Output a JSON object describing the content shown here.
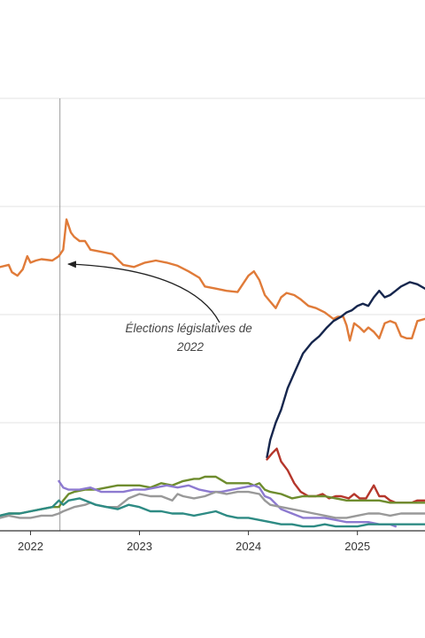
{
  "chart_data": {
    "type": "line",
    "title": "",
    "xlabel": "",
    "ylabel": "",
    "x_tick_labels": [
      "2022",
      "2023",
      "2024",
      "2025"
    ],
    "xlim": [
      2021.72,
      2025.62
    ],
    "ylim": [
      0,
      100
    ],
    "y_gridlines": [
      25,
      50,
      75
    ],
    "grid": true,
    "legend": "none",
    "annotation": {
      "lines": [
        "Élections législatives de",
        "2022"
      ],
      "event_x": 2022.27
    },
    "series": [
      {
        "color": "#e07b39",
        "points": [
          [
            2021.72,
            61
          ],
          [
            2021.8,
            61.5
          ],
          [
            2021.83,
            59.8
          ],
          [
            2021.88,
            59
          ],
          [
            2021.93,
            60.5
          ],
          [
            2021.97,
            63.5
          ],
          [
            2022.0,
            62
          ],
          [
            2022.05,
            62.5
          ],
          [
            2022.1,
            62.8
          ],
          [
            2022.2,
            62.5
          ],
          [
            2022.26,
            63.5
          ],
          [
            2022.3,
            65
          ],
          [
            2022.33,
            72
          ],
          [
            2022.37,
            69
          ],
          [
            2022.4,
            68
          ],
          [
            2022.45,
            67
          ],
          [
            2022.5,
            67
          ],
          [
            2022.55,
            65
          ],
          [
            2022.65,
            64.5
          ],
          [
            2022.75,
            64
          ],
          [
            2022.85,
            61.5
          ],
          [
            2022.95,
            61
          ],
          [
            2023.05,
            62
          ],
          [
            2023.15,
            62.5
          ],
          [
            2023.25,
            62
          ],
          [
            2023.35,
            61.3
          ],
          [
            2023.45,
            60
          ],
          [
            2023.55,
            58.5
          ],
          [
            2023.6,
            56.5
          ],
          [
            2023.7,
            56
          ],
          [
            2023.8,
            55.5
          ],
          [
            2023.9,
            55.2
          ],
          [
            2024.0,
            59
          ],
          [
            2024.05,
            60
          ],
          [
            2024.1,
            58
          ],
          [
            2024.15,
            54.5
          ],
          [
            2024.2,
            53
          ],
          [
            2024.25,
            51.5
          ],
          [
            2024.3,
            54
          ],
          [
            2024.35,
            55
          ],
          [
            2024.42,
            54.5
          ],
          [
            2024.48,
            53.5
          ],
          [
            2024.55,
            52
          ],
          [
            2024.62,
            51.5
          ],
          [
            2024.7,
            50.5
          ],
          [
            2024.78,
            49
          ],
          [
            2024.82,
            49.5
          ],
          [
            2024.87,
            49.5
          ],
          [
            2024.9,
            47.5
          ],
          [
            2024.93,
            44
          ],
          [
            2024.97,
            48
          ],
          [
            2025.02,
            47
          ],
          [
            2025.06,
            46
          ],
          [
            2025.1,
            47
          ],
          [
            2025.15,
            46
          ],
          [
            2025.2,
            44.5
          ],
          [
            2025.25,
            48
          ],
          [
            2025.3,
            48.5
          ],
          [
            2025.35,
            48
          ],
          [
            2025.4,
            45
          ],
          [
            2025.45,
            44.5
          ],
          [
            2025.5,
            44.5
          ],
          [
            2025.55,
            48.5
          ],
          [
            2025.62,
            49
          ]
        ]
      },
      {
        "color": "#16264d",
        "points": [
          [
            2024.17,
            17
          ],
          [
            2024.2,
            21
          ],
          [
            2024.25,
            25
          ],
          [
            2024.3,
            28
          ],
          [
            2024.36,
            33
          ],
          [
            2024.43,
            37
          ],
          [
            2024.5,
            41
          ],
          [
            2024.58,
            43.5
          ],
          [
            2024.65,
            45
          ],
          [
            2024.72,
            47
          ],
          [
            2024.78,
            48.5
          ],
          [
            2024.85,
            49.5
          ],
          [
            2024.9,
            50.5
          ],
          [
            2024.95,
            51
          ],
          [
            2025.0,
            52
          ],
          [
            2025.05,
            52.5
          ],
          [
            2025.1,
            52
          ],
          [
            2025.15,
            54
          ],
          [
            2025.2,
            55.5
          ],
          [
            2025.25,
            54
          ],
          [
            2025.3,
            54.5
          ],
          [
            2025.35,
            55.5
          ],
          [
            2025.4,
            56.5
          ],
          [
            2025.48,
            57.5
          ],
          [
            2025.55,
            57
          ],
          [
            2025.62,
            56
          ]
        ]
      },
      {
        "color": "#b5362b",
        "points": [
          [
            2024.17,
            16.5
          ],
          [
            2024.22,
            18
          ],
          [
            2024.26,
            19
          ],
          [
            2024.3,
            16
          ],
          [
            2024.36,
            14
          ],
          [
            2024.42,
            11
          ],
          [
            2024.48,
            9
          ],
          [
            2024.55,
            8
          ],
          [
            2024.62,
            8
          ],
          [
            2024.68,
            8.5
          ],
          [
            2024.74,
            7.5
          ],
          [
            2024.8,
            8
          ],
          [
            2024.85,
            8
          ],
          [
            2024.92,
            7.5
          ],
          [
            2024.97,
            8.5
          ],
          [
            2025.02,
            7.5
          ],
          [
            2025.08,
            7.5
          ],
          [
            2025.15,
            10.5
          ],
          [
            2025.2,
            8
          ],
          [
            2025.25,
            8
          ],
          [
            2025.3,
            7
          ],
          [
            2025.35,
            6.5
          ],
          [
            2025.42,
            6.5
          ],
          [
            2025.5,
            6.5
          ],
          [
            2025.55,
            7
          ],
          [
            2025.62,
            7
          ]
        ]
      },
      {
        "color": "#6e8c2e",
        "points": [
          [
            2021.72,
            3.5
          ],
          [
            2021.8,
            4
          ],
          [
            2021.9,
            4
          ],
          [
            2022.0,
            4.5
          ],
          [
            2022.1,
            5
          ],
          [
            2022.2,
            5.5
          ],
          [
            2022.26,
            5.5
          ],
          [
            2022.3,
            7
          ],
          [
            2022.35,
            8.5
          ],
          [
            2022.4,
            9
          ],
          [
            2022.5,
            9.5
          ],
          [
            2022.6,
            9.5
          ],
          [
            2022.7,
            10
          ],
          [
            2022.8,
            10.5
          ],
          [
            2022.9,
            10.5
          ],
          [
            2023.0,
            10.5
          ],
          [
            2023.1,
            10
          ],
          [
            2023.2,
            11
          ],
          [
            2023.3,
            10.5
          ],
          [
            2023.4,
            11.5
          ],
          [
            2023.5,
            12
          ],
          [
            2023.55,
            12
          ],
          [
            2023.6,
            12.5
          ],
          [
            2023.7,
            12.5
          ],
          [
            2023.8,
            11
          ],
          [
            2023.9,
            11
          ],
          [
            2024.0,
            11
          ],
          [
            2024.05,
            10.5
          ],
          [
            2024.1,
            11
          ],
          [
            2024.15,
            9.5
          ],
          [
            2024.2,
            9
          ],
          [
            2024.3,
            8.5
          ],
          [
            2024.4,
            7.5
          ],
          [
            2024.5,
            8
          ],
          [
            2024.6,
            8
          ],
          [
            2024.7,
            8
          ],
          [
            2024.8,
            7.5
          ],
          [
            2024.9,
            7
          ],
          [
            2025.0,
            7
          ],
          [
            2025.1,
            7
          ],
          [
            2025.2,
            7
          ],
          [
            2025.3,
            6.5
          ],
          [
            2025.4,
            6.5
          ],
          [
            2025.5,
            6.5
          ],
          [
            2025.62,
            6.5
          ]
        ]
      },
      {
        "color": "#8d7ad0",
        "points": [
          [
            2022.26,
            11.5
          ],
          [
            2022.3,
            10
          ],
          [
            2022.35,
            9.5
          ],
          [
            2022.45,
            9.5
          ],
          [
            2022.55,
            10
          ],
          [
            2022.65,
            9
          ],
          [
            2022.75,
            9
          ],
          [
            2022.85,
            9
          ],
          [
            2022.95,
            9.5
          ],
          [
            2023.05,
            9.5
          ],
          [
            2023.15,
            10
          ],
          [
            2023.25,
            10.5
          ],
          [
            2023.35,
            10
          ],
          [
            2023.45,
            10.5
          ],
          [
            2023.55,
            9.5
          ],
          [
            2023.65,
            9
          ],
          [
            2023.75,
            9
          ],
          [
            2023.85,
            9.5
          ],
          [
            2023.95,
            10
          ],
          [
            2024.05,
            10.5
          ],
          [
            2024.1,
            10
          ],
          [
            2024.15,
            8
          ],
          [
            2024.2,
            7.5
          ],
          [
            2024.3,
            5
          ],
          [
            2024.4,
            4
          ],
          [
            2024.5,
            3
          ],
          [
            2024.6,
            3
          ],
          [
            2024.7,
            3
          ],
          [
            2024.8,
            2.5
          ],
          [
            2024.9,
            2
          ],
          [
            2025.0,
            2
          ],
          [
            2025.1,
            2
          ],
          [
            2025.2,
            1.5
          ],
          [
            2025.3,
            1.5
          ],
          [
            2025.35,
            1
          ]
        ]
      },
      {
        "color": "#999999",
        "points": [
          [
            2021.72,
            3
          ],
          [
            2021.8,
            3.5
          ],
          [
            2021.9,
            3
          ],
          [
            2022.0,
            3
          ],
          [
            2022.1,
            3.5
          ],
          [
            2022.2,
            3.5
          ],
          [
            2022.26,
            4
          ],
          [
            2022.3,
            4.5
          ],
          [
            2022.4,
            5.5
          ],
          [
            2022.5,
            6
          ],
          [
            2022.55,
            6.5
          ],
          [
            2022.6,
            6
          ],
          [
            2022.7,
            5.5
          ],
          [
            2022.8,
            5.5
          ],
          [
            2022.9,
            7.5
          ],
          [
            2023.0,
            8.5
          ],
          [
            2023.1,
            8
          ],
          [
            2023.2,
            8
          ],
          [
            2023.3,
            7
          ],
          [
            2023.35,
            8.5
          ],
          [
            2023.4,
            8
          ],
          [
            2023.5,
            7.5
          ],
          [
            2023.6,
            8
          ],
          [
            2023.7,
            9
          ],
          [
            2023.8,
            8.5
          ],
          [
            2023.9,
            9
          ],
          [
            2024.0,
            9
          ],
          [
            2024.1,
            8.5
          ],
          [
            2024.15,
            7
          ],
          [
            2024.2,
            6
          ],
          [
            2024.3,
            5.5
          ],
          [
            2024.4,
            5
          ],
          [
            2024.5,
            4.5
          ],
          [
            2024.6,
            4
          ],
          [
            2024.7,
            3.5
          ],
          [
            2024.8,
            3
          ],
          [
            2024.9,
            3
          ],
          [
            2025.0,
            3.5
          ],
          [
            2025.1,
            4
          ],
          [
            2025.2,
            4
          ],
          [
            2025.3,
            3.5
          ],
          [
            2025.4,
            4
          ],
          [
            2025.5,
            4
          ],
          [
            2025.62,
            4
          ]
        ]
      },
      {
        "color": "#2e8b84",
        "points": [
          [
            2021.72,
            3.5
          ],
          [
            2021.8,
            4
          ],
          [
            2021.9,
            4
          ],
          [
            2022.0,
            4.5
          ],
          [
            2022.1,
            5
          ],
          [
            2022.2,
            5.5
          ],
          [
            2022.26,
            7
          ],
          [
            2022.3,
            6
          ],
          [
            2022.35,
            7
          ],
          [
            2022.45,
            7.5
          ],
          [
            2022.55,
            6.5
          ],
          [
            2022.6,
            6
          ],
          [
            2022.7,
            5.5
          ],
          [
            2022.8,
            5
          ],
          [
            2022.9,
            6
          ],
          [
            2023.0,
            5.5
          ],
          [
            2023.1,
            4.5
          ],
          [
            2023.2,
            4.5
          ],
          [
            2023.3,
            4
          ],
          [
            2023.4,
            4
          ],
          [
            2023.5,
            3.5
          ],
          [
            2023.6,
            4
          ],
          [
            2023.7,
            4.5
          ],
          [
            2023.8,
            3.5
          ],
          [
            2023.9,
            3
          ],
          [
            2024.0,
            3
          ],
          [
            2024.1,
            2.5
          ],
          [
            2024.2,
            2
          ],
          [
            2024.3,
            1.5
          ],
          [
            2024.4,
            1.5
          ],
          [
            2024.5,
            1
          ],
          [
            2024.6,
            1
          ],
          [
            2024.7,
            1.5
          ],
          [
            2024.8,
            1
          ],
          [
            2024.9,
            1
          ],
          [
            2025.0,
            1
          ],
          [
            2025.1,
            1.5
          ],
          [
            2025.2,
            1.5
          ],
          [
            2025.3,
            1.5
          ],
          [
            2025.4,
            1.5
          ],
          [
            2025.5,
            1.5
          ],
          [
            2025.62,
            1.5
          ]
        ]
      }
    ]
  }
}
